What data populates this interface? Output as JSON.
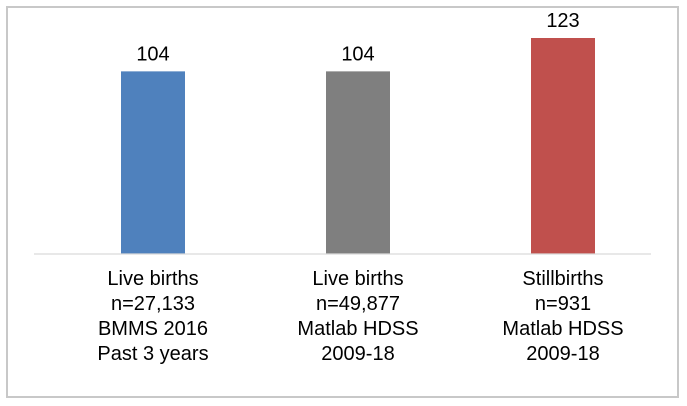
{
  "chart_data": {
    "type": "bar",
    "categories": [
      [
        "Live births",
        "n=27,133",
        "BMMS 2016",
        "Past 3 years"
      ],
      [
        "Live births",
        "n=49,877",
        "Matlab HDSS",
        "2009-18"
      ],
      [
        "Stillbirths",
        "n=931",
        "Matlab HDSS",
        "2009-18"
      ]
    ],
    "values": [
      104,
      104,
      123
    ],
    "data_labels": [
      "104",
      "104",
      "123"
    ],
    "colors": [
      "#4f81bd",
      "#7f7f7f",
      "#c0504d"
    ],
    "title": "",
    "xlabel": "",
    "ylabel": "",
    "ylim": [
      0,
      123
    ],
    "grid": false,
    "legend": "none"
  }
}
